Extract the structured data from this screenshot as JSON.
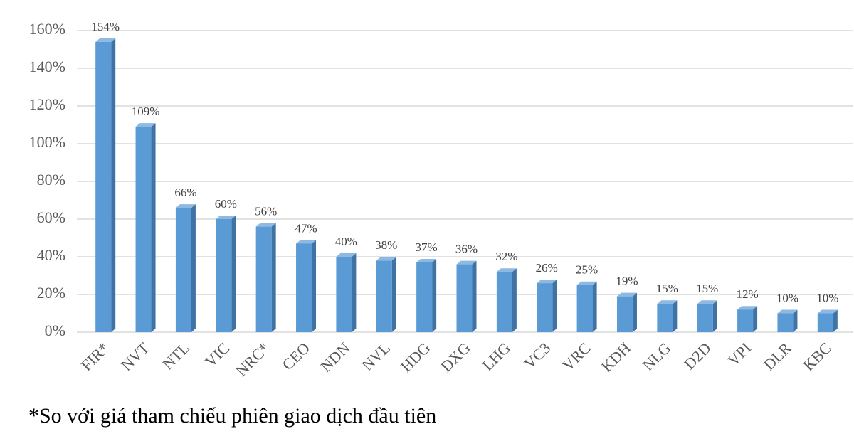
{
  "chart_data": {
    "type": "bar",
    "categories": [
      "FIR*",
      "NVT",
      "NTL",
      "VIC",
      "NRC*",
      "CEO",
      "NDN",
      "NVL",
      "HDG",
      "DXG",
      "LHG",
      "VC3",
      "VRC",
      "KDH",
      "NLG",
      "D2D",
      "VPI",
      "DLR",
      "KBC"
    ],
    "values": [
      154,
      109,
      66,
      60,
      56,
      47,
      40,
      38,
      37,
      36,
      32,
      26,
      25,
      19,
      15,
      15,
      12,
      10,
      10
    ],
    "value_labels": [
      "154%",
      "109%",
      "66%",
      "60%",
      "56%",
      "47%",
      "40%",
      "38%",
      "37%",
      "36%",
      "32%",
      "26%",
      "25%",
      "19%",
      "15%",
      "15%",
      "12%",
      "10%",
      "10%"
    ],
    "color": "#5b9bd5",
    "ylim": [
      0,
      160
    ],
    "yticks": [
      {
        "value": 0,
        "label": "0%"
      },
      {
        "value": 20,
        "label": "20%"
      },
      {
        "value": 40,
        "label": "40%"
      },
      {
        "value": 60,
        "label": "60%"
      },
      {
        "value": 80,
        "label": "80%"
      },
      {
        "value": 100,
        "label": "100%"
      },
      {
        "value": 120,
        "label": "120%"
      },
      {
        "value": 140,
        "label": "140%"
      },
      {
        "value": 160,
        "label": "160%"
      }
    ],
    "grid": true,
    "note": "*So với giá tham chiếu phiên giao dịch đầu tiên"
  }
}
